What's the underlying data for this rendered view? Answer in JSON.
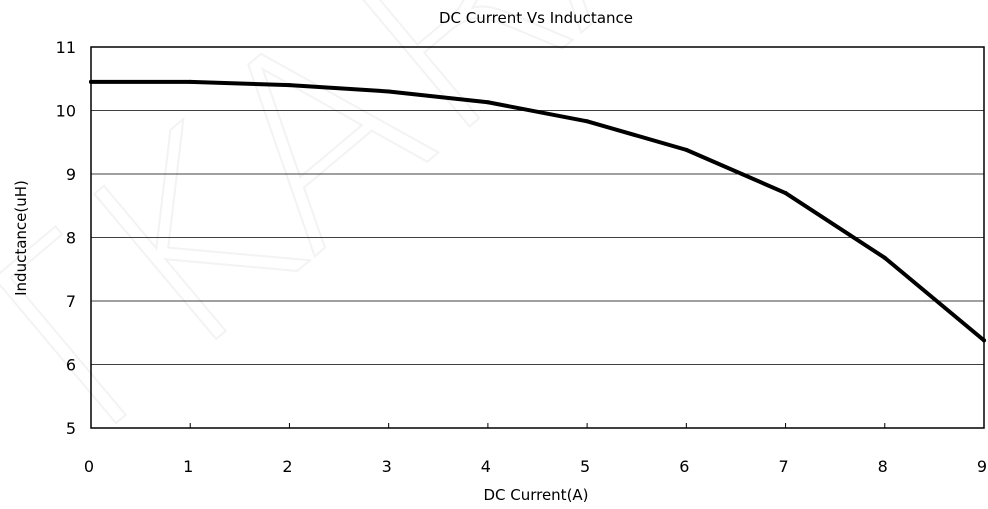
{
  "chart_data": {
    "type": "line",
    "title": "DC Current Vs Inductance",
    "xlabel": "DC Current(A)",
    "ylabel": "Inductance(uH)",
    "xlim": [
      0,
      9
    ],
    "ylim": [
      5,
      11
    ],
    "x_ticks": [
      "0",
      "1",
      "2",
      "3",
      "4",
      "5",
      "6",
      "7",
      "8",
      "9"
    ],
    "y_ticks": [
      "5",
      "6",
      "7",
      "8",
      "9",
      "10",
      "11"
    ],
    "grid": "horizontal",
    "legend": "none",
    "line_color": "#000000",
    "series": [
      {
        "x": [
          0,
          1,
          2,
          3,
          4,
          5,
          6,
          7,
          8,
          9
        ],
        "values": [
          10.45,
          10.45,
          10.4,
          10.3,
          10.13,
          9.83,
          9.38,
          8.7,
          7.68,
          6.38
        ]
      }
    ]
  },
  "watermark": "TKARA"
}
